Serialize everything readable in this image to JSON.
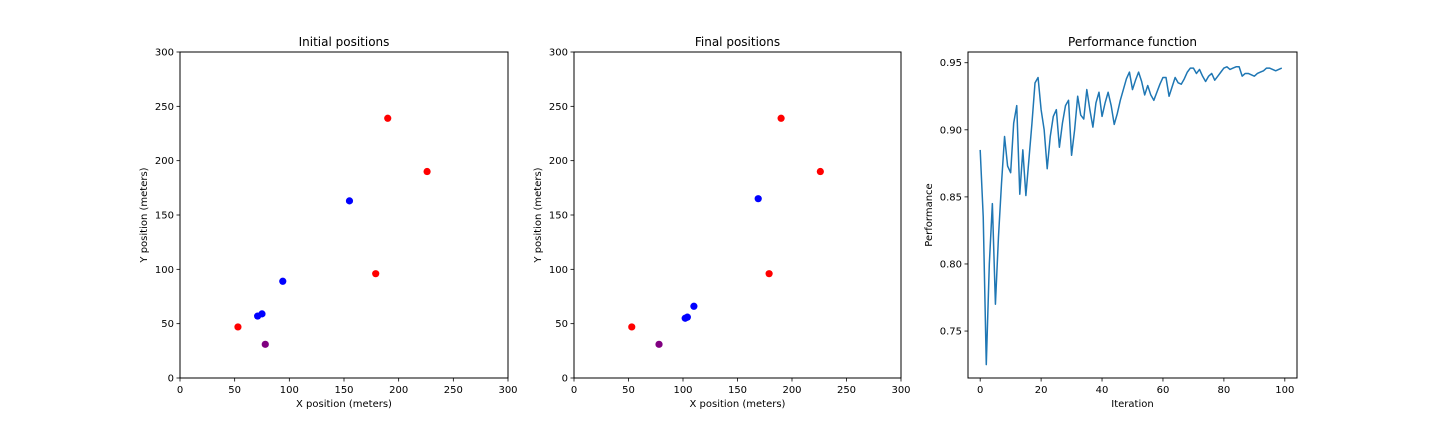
{
  "chart_data": [
    {
      "type": "scatter",
      "title": "Initial positions",
      "xlabel": "X position (meters)",
      "ylabel": "Y position (meters)",
      "xlim": [
        0,
        300
      ],
      "ylim": [
        0,
        300
      ],
      "xticks": [
        0,
        50,
        100,
        150,
        200,
        250,
        300
      ],
      "yticks": [
        0,
        50,
        100,
        150,
        200,
        250,
        300
      ],
      "grid": false,
      "series": [
        {
          "color": "#ff0000",
          "x": [
            53,
            179,
            190,
            226
          ],
          "y": [
            47,
            96,
            239,
            190
          ]
        },
        {
          "color": "#0000ff",
          "x": [
            71,
            75,
            94,
            155
          ],
          "y": [
            57,
            59,
            89,
            163
          ]
        },
        {
          "color": "#800080",
          "x": [
            78
          ],
          "y": [
            31
          ]
        }
      ]
    },
    {
      "type": "scatter",
      "title": "Final positions",
      "xlabel": "X position (meters)",
      "ylabel": "Y position (meters)",
      "xlim": [
        0,
        300
      ],
      "ylim": [
        0,
        300
      ],
      "xticks": [
        0,
        50,
        100,
        150,
        200,
        250,
        300
      ],
      "yticks": [
        0,
        50,
        100,
        150,
        200,
        250,
        300
      ],
      "grid": false,
      "series": [
        {
          "color": "#ff0000",
          "x": [
            53,
            179,
            190,
            226
          ],
          "y": [
            47,
            96,
            239,
            190
          ]
        },
        {
          "color": "#0000ff",
          "x": [
            102,
            104,
            110,
            169
          ],
          "y": [
            55,
            56,
            66,
            165
          ]
        },
        {
          "color": "#800080",
          "x": [
            78
          ],
          "y": [
            31
          ]
        }
      ]
    },
    {
      "type": "line",
      "title": "Performance function",
      "xlabel": "Iteration",
      "ylabel": "Performance",
      "xlim": [
        -4,
        104
      ],
      "ylim": [
        0.715,
        0.958
      ],
      "xticks": [
        0,
        20,
        40,
        60,
        80,
        100
      ],
      "yticks": [
        "0.75",
        "0.80",
        "0.85",
        "0.90",
        "0.95"
      ],
      "grid": false,
      "series": [
        {
          "color": "#1f77b4",
          "x": [
            0,
            1,
            2,
            3,
            4,
            5,
            6,
            7,
            8,
            9,
            10,
            11,
            12,
            13,
            14,
            15,
            16,
            17,
            18,
            19,
            20,
            21,
            22,
            23,
            24,
            25,
            26,
            27,
            28,
            29,
            30,
            31,
            32,
            33,
            34,
            35,
            36,
            37,
            38,
            39,
            40,
            41,
            42,
            43,
            44,
            45,
            46,
            47,
            48,
            49,
            50,
            51,
            52,
            53,
            54,
            55,
            56,
            57,
            58,
            59,
            60,
            61,
            62,
            63,
            64,
            65,
            66,
            67,
            68,
            69,
            70,
            71,
            72,
            73,
            74,
            75,
            76,
            77,
            78,
            79,
            80,
            81,
            82,
            83,
            84,
            85,
            86,
            87,
            88,
            89,
            90,
            91,
            92,
            93,
            94,
            95,
            96,
            97,
            98,
            99
          ],
          "y": [
            0.885,
            0.835,
            0.725,
            0.8,
            0.845,
            0.77,
            0.82,
            0.86,
            0.895,
            0.873,
            0.868,
            0.905,
            0.918,
            0.852,
            0.885,
            0.851,
            0.878,
            0.905,
            0.935,
            0.939,
            0.915,
            0.9,
            0.871,
            0.895,
            0.91,
            0.915,
            0.887,
            0.905,
            0.918,
            0.922,
            0.881,
            0.9,
            0.925,
            0.911,
            0.908,
            0.93,
            0.915,
            0.902,
            0.92,
            0.928,
            0.91,
            0.92,
            0.928,
            0.918,
            0.904,
            0.912,
            0.922,
            0.93,
            0.938,
            0.943,
            0.93,
            0.937,
            0.943,
            0.936,
            0.926,
            0.933,
            0.926,
            0.922,
            0.928,
            0.934,
            0.939,
            0.939,
            0.925,
            0.932,
            0.939,
            0.935,
            0.934,
            0.938,
            0.943,
            0.946,
            0.946,
            0.942,
            0.945,
            0.94,
            0.936,
            0.94,
            0.942,
            0.937,
            0.94,
            0.943,
            0.946,
            0.947,
            0.945,
            0.946,
            0.947,
            0.947,
            0.94,
            0.942,
            0.942,
            0.941,
            0.94,
            0.942,
            0.943,
            0.944,
            0.946,
            0.946,
            0.945,
            0.944,
            0.945,
            0.946
          ]
        }
      ]
    }
  ]
}
